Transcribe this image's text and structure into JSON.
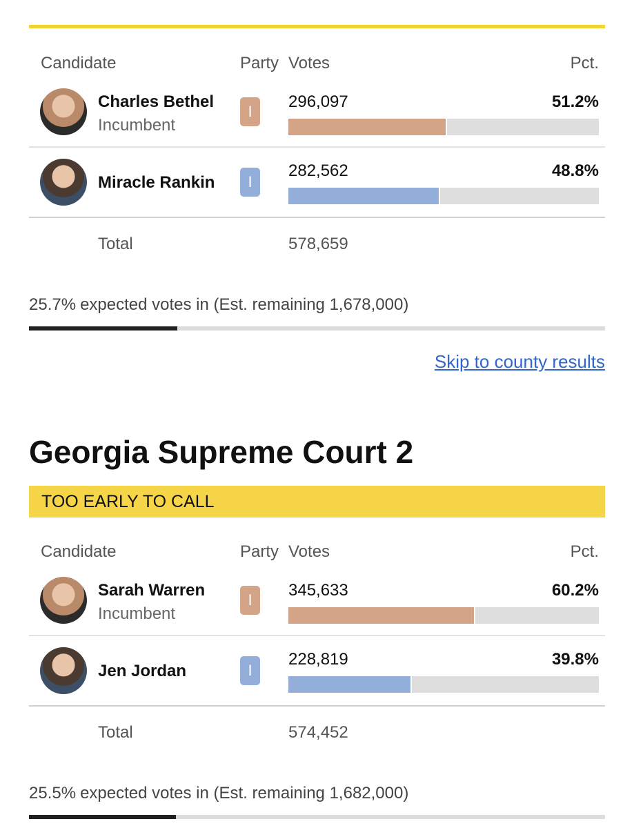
{
  "races": [
    {
      "columns": {
        "candidate": "Candidate",
        "party": "Party",
        "votes": "Votes",
        "pct": "Pct."
      },
      "candidates": [
        {
          "name": "Charles Bethel",
          "note": "Incumbent",
          "party": "I",
          "votes": "296,097",
          "pct": {
            "value": 51.2,
            "label": "51.2%"
          },
          "color": "#d3a488"
        },
        {
          "name": "Miracle Rankin",
          "party": "I",
          "votes": "282,562",
          "pct": {
            "value": 48.8,
            "label": "48.8%"
          },
          "color": "#93afd9"
        }
      ],
      "total_label": "Total",
      "total_votes": "578,659",
      "expected": {
        "value": 25.7,
        "label": "25.7%"
      },
      "expected_text": "expected votes in (Est. remaining 1,678,000)"
    },
    {
      "title": "Georgia Supreme Court 2",
      "status": "TOO EARLY TO CALL",
      "columns": {
        "candidate": "Candidate",
        "party": "Party",
        "votes": "Votes",
        "pct": "Pct."
      },
      "candidates": [
        {
          "name": "Sarah Warren",
          "note": "Incumbent",
          "party": "I",
          "votes": "345,633",
          "pct": {
            "value": 60.2,
            "label": "60.2%"
          },
          "color": "#d3a488"
        },
        {
          "name": "Jen Jordan",
          "party": "I",
          "votes": "228,819",
          "pct": {
            "value": 39.8,
            "label": "39.8%"
          },
          "color": "#93afd9"
        }
      ],
      "total_label": "Total",
      "total_votes": "574,452",
      "expected": {
        "value": 25.5,
        "label": "25.5%"
      },
      "expected_text": "expected votes in (Est. remaining 1,682,000)"
    }
  ],
  "skip_link": "Skip to county results"
}
